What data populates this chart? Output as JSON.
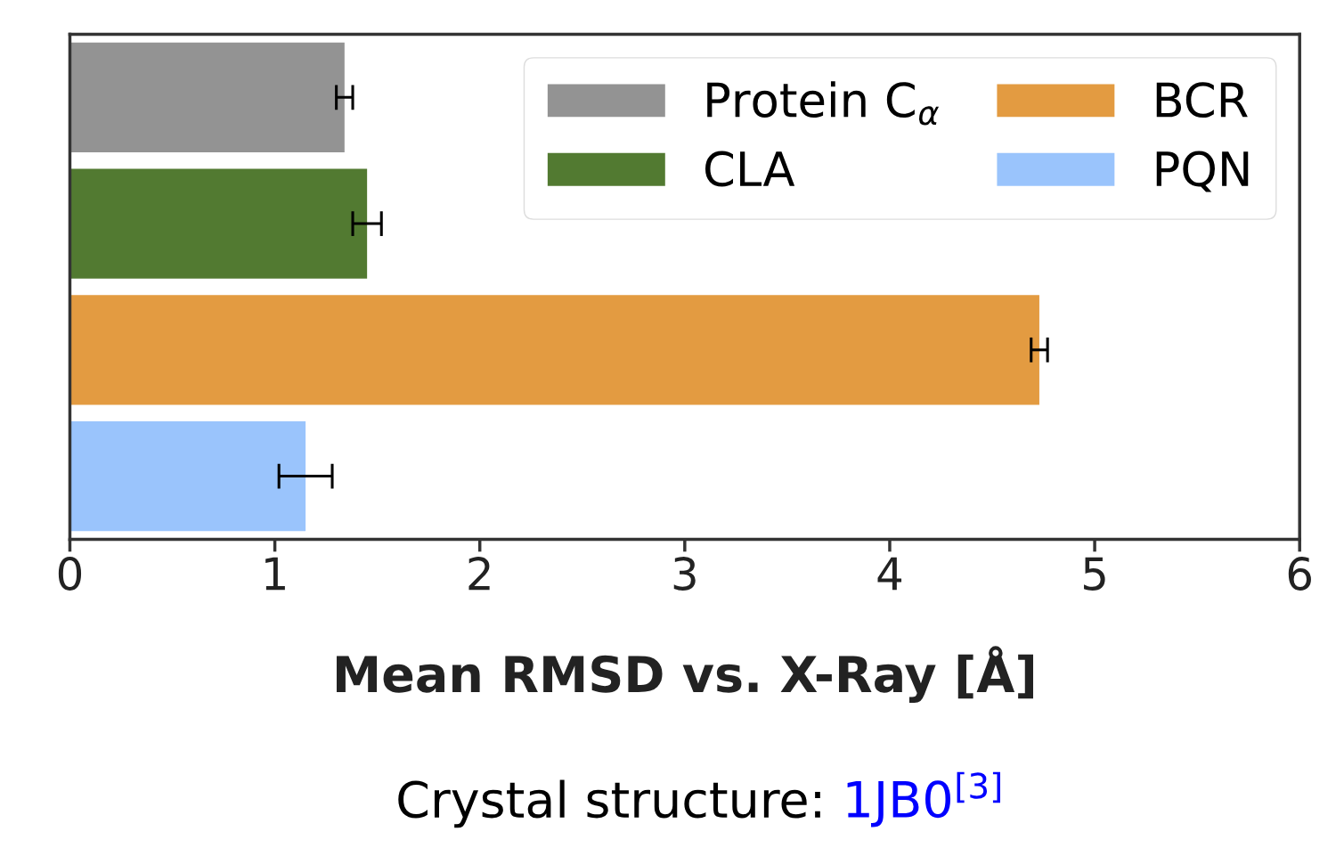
{
  "chart_data": {
    "type": "bar",
    "orientation": "horizontal",
    "xlabel": "Mean RMSD vs. X-Ray [Å]",
    "categories": [
      null,
      null,
      null,
      null
    ],
    "series": [
      {
        "name": "Protein C$_{α}$",
        "color": "#939393",
        "values": [
          1.34,
          null,
          null,
          null
        ],
        "errors": [
          0.04,
          null,
          null,
          null
        ]
      },
      {
        "name": "CLA",
        "color": "#527a31",
        "values": [
          null,
          1.45,
          null,
          null
        ],
        "errors": [
          null,
          0.07,
          null,
          null
        ]
      },
      {
        "name": "BCR",
        "color": "#e39b41",
        "values": [
          null,
          null,
          4.73,
          null
        ],
        "errors": [
          null,
          null,
          0.04,
          null
        ]
      },
      {
        "name": "PQN",
        "color": "#9ac4fc",
        "values": [
          null,
          null,
          null,
          1.15
        ],
        "errors": [
          null,
          null,
          null,
          0.13
        ]
      }
    ],
    "xlim": [
      0,
      6
    ],
    "xticks": [
      0,
      1,
      2,
      3,
      4,
      5,
      6
    ],
    "tick_labels": "x",
    "grid": false,
    "legend": "top right",
    "annotations": [
      "Crystal structure:",
      "1JB0$^{[3]}$"
    ]
  }
}
